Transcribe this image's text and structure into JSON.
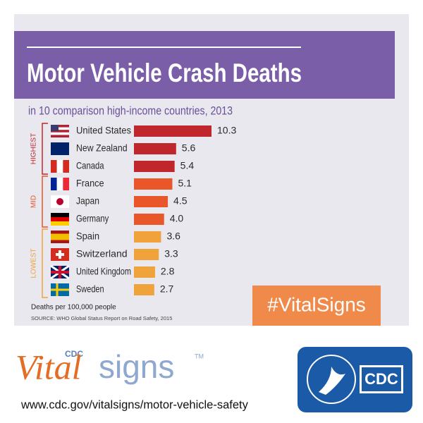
{
  "chart_data": {
    "type": "bar",
    "title": "Motor Vehicle Crash Deaths",
    "subtitle": "in 10 comparison high-income countries, 2013",
    "axis_note": "Deaths per 100,000 people",
    "source": "SOURCE: WHO Global Status Report on Road Safety, 2015",
    "xlim": [
      0,
      10.3
    ],
    "groups": [
      {
        "label": "HIGHEST",
        "color": "#c0272d",
        "categories": [
          "United States",
          "New Zealand",
          "Canada"
        ],
        "values": [
          10.3,
          5.6,
          5.4
        ]
      },
      {
        "label": "MID",
        "color": "#e8562a",
        "categories": [
          "France",
          "Japan",
          "Germany"
        ],
        "values": [
          5.1,
          4.5,
          4
        ],
        "value_labels": [
          "5.1",
          "4.5",
          "4.0"
        ]
      },
      {
        "label": "LOWEST",
        "color": "#f0a23b",
        "categories": [
          "Spain",
          "Switzerland",
          "United Kingdom",
          "Sweden"
        ],
        "values": [
          3.6,
          3.3,
          2.8,
          2.7
        ]
      }
    ]
  },
  "hashtag": "#VitalSigns",
  "logo": {
    "cdc_small": "CDC",
    "vital": "Vital",
    "signs": "signs",
    "tm": "TM",
    "badge": "CDC"
  },
  "url": "www.cdc.gov/vitalsigns/motor-vehicle-safety"
}
